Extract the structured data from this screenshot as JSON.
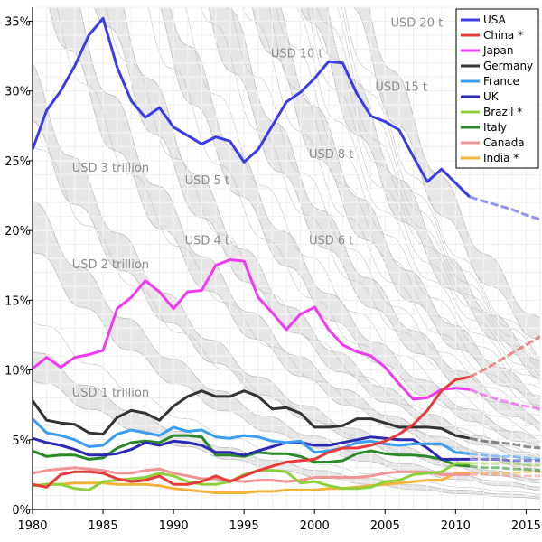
{
  "chart_data": {
    "type": "line",
    "xlim": [
      1980,
      2016
    ],
    "ylim": [
      0,
      36
    ],
    "x_ticks": [
      {
        "value": 1980,
        "label": "1980"
      },
      {
        "value": 1985,
        "label": "1985"
      },
      {
        "value": 1990,
        "label": "1990"
      },
      {
        "value": 1995,
        "label": "1995"
      },
      {
        "value": 2000,
        "label": "2000"
      },
      {
        "value": 2005,
        "label": "2005"
      },
      {
        "value": 2010,
        "label": "2010"
      },
      {
        "value": 2015,
        "label": "2015"
      }
    ],
    "y_ticks": [
      {
        "value": 0,
        "label": "0%"
      },
      {
        "value": 5,
        "label": "5%"
      },
      {
        "value": 10,
        "label": "10%"
      },
      {
        "value": 15,
        "label": "15%"
      },
      {
        "value": 20,
        "label": "20%"
      },
      {
        "value": 25,
        "label": "25%"
      },
      {
        "value": 30,
        "label": "30%"
      },
      {
        "value": 35,
        "label": "35%"
      }
    ],
    "grid": true,
    "legend_position": "top-right",
    "forecast_from": 2011,
    "bands": [
      {
        "label": "USD 1 trillion",
        "x": 1982.8,
        "y": 8.1
      },
      {
        "label": "USD 2 trillion",
        "x": 1982.8,
        "y": 17.3
      },
      {
        "label": "USD 3 trillion",
        "x": 1982.8,
        "y": 24.2
      },
      {
        "label": "USD 4 t",
        "x": 1990.8,
        "y": 19.0
      },
      {
        "label": "USD 5 t",
        "x": 1990.8,
        "y": 23.3
      },
      {
        "label": "USD 6 t",
        "x": 1999.6,
        "y": 19.0
      },
      {
        "label": "USD 8 t",
        "x": 1999.6,
        "y": 25.2
      },
      {
        "label": "USD 10 t",
        "x": 1996.9,
        "y": 32.4
      },
      {
        "label": "USD 15 t",
        "x": 2004.3,
        "y": 30.0
      },
      {
        "label": "USD 20 t",
        "x": 2005.4,
        "y": 34.6
      }
    ],
    "years": [
      1980,
      1981,
      1982,
      1983,
      1984,
      1985,
      1986,
      1987,
      1988,
      1989,
      1990,
      1991,
      1992,
      1993,
      1994,
      1995,
      1996,
      1997,
      1998,
      1999,
      2000,
      2001,
      2002,
      2003,
      2004,
      2005,
      2006,
      2007,
      2008,
      2009,
      2010,
      2011,
      2012,
      2013,
      2014,
      2015,
      2016
    ],
    "series": [
      {
        "name": "USA",
        "color": "#3a3ce8",
        "values": [
          25.8,
          28.6,
          30.0,
          31.8,
          34.0,
          35.2,
          31.7,
          29.3,
          28.1,
          28.8,
          27.4,
          26.8,
          26.2,
          26.7,
          26.4,
          24.9,
          25.8,
          27.5,
          29.2,
          29.9,
          30.9,
          32.1,
          32.0,
          29.8,
          28.2,
          27.8,
          27.2,
          25.3,
          23.5,
          24.4,
          23.4,
          22.4,
          22.1,
          21.8,
          21.5,
          21.1,
          20.8
        ]
      },
      {
        "name": "China *",
        "color": "#e83a3a",
        "values": [
          1.8,
          1.6,
          2.5,
          2.7,
          2.7,
          2.6,
          2.2,
          2.0,
          2.1,
          2.4,
          1.8,
          1.8,
          2.0,
          2.4,
          2.0,
          2.4,
          2.8,
          3.1,
          3.4,
          3.5,
          3.6,
          4.1,
          4.4,
          4.4,
          4.6,
          4.9,
          5.4,
          6.1,
          7.1,
          8.5,
          9.3,
          9.5,
          10.0,
          10.6,
          11.2,
          11.8,
          12.4
        ]
      },
      {
        "name": "Japan",
        "color": "#f03af0",
        "values": [
          10.1,
          10.9,
          10.2,
          10.9,
          11.1,
          11.4,
          14.4,
          15.2,
          16.4,
          15.6,
          14.4,
          15.6,
          15.7,
          17.5,
          17.9,
          17.8,
          15.2,
          14.1,
          12.9,
          14.0,
          14.5,
          12.9,
          11.8,
          11.3,
          11.0,
          10.2,
          9.0,
          7.9,
          8.0,
          8.6,
          8.7,
          8.6,
          8.2,
          7.9,
          7.6,
          7.4,
          7.2
        ]
      },
      {
        "name": "Germany",
        "color": "#333333",
        "values": [
          7.8,
          6.4,
          6.2,
          6.1,
          5.5,
          5.4,
          6.6,
          7.1,
          6.9,
          6.4,
          7.4,
          8.1,
          8.5,
          8.1,
          8.1,
          8.5,
          8.1,
          7.2,
          7.3,
          6.9,
          5.9,
          5.9,
          6.0,
          6.5,
          6.5,
          6.2,
          5.9,
          5.9,
          5.9,
          5.8,
          5.3,
          5.1,
          4.9,
          4.8,
          4.7,
          4.5,
          4.4
        ]
      },
      {
        "name": "France",
        "color": "#3a9ef0",
        "values": [
          6.5,
          5.5,
          5.3,
          5.0,
          4.5,
          4.6,
          5.4,
          5.7,
          5.5,
          5.3,
          5.9,
          5.6,
          5.7,
          5.2,
          5.1,
          5.3,
          5.2,
          4.9,
          4.8,
          4.9,
          4.1,
          4.2,
          4.4,
          4.8,
          4.9,
          4.7,
          4.6,
          4.7,
          4.7,
          4.7,
          4.1,
          4.0,
          3.9,
          3.8,
          3.8,
          3.7,
          3.6
        ]
      },
      {
        "name": "UK",
        "color": "#2a2ab4",
        "values": [
          5.1,
          4.8,
          4.6,
          4.3,
          3.9,
          3.9,
          4.0,
          4.3,
          4.8,
          4.6,
          4.9,
          4.8,
          4.6,
          4.1,
          4.1,
          3.9,
          4.2,
          4.5,
          4.8,
          4.8,
          4.6,
          4.6,
          4.8,
          5.0,
          5.2,
          5.1,
          5.0,
          5.0,
          4.4,
          3.6,
          3.6,
          3.6,
          3.6,
          3.6,
          3.5,
          3.5,
          3.5
        ]
      },
      {
        "name": "Brazil *",
        "color": "#8ed03a",
        "values": [
          1.7,
          1.8,
          1.8,
          1.5,
          1.4,
          2.0,
          2.1,
          2.2,
          2.3,
          2.6,
          2.4,
          2.0,
          1.8,
          1.8,
          2.0,
          2.5,
          2.8,
          2.8,
          2.7,
          1.9,
          2.0,
          1.7,
          1.5,
          1.5,
          1.6,
          2.0,
          2.1,
          2.5,
          2.6,
          2.7,
          3.3,
          3.3,
          3.3,
          3.3,
          3.3,
          3.2,
          3.2
        ]
      },
      {
        "name": "Italy",
        "color": "#2a8a2a",
        "values": [
          4.2,
          3.8,
          3.9,
          3.9,
          3.6,
          3.7,
          4.4,
          4.8,
          4.9,
          4.8,
          5.3,
          5.3,
          5.2,
          3.9,
          3.9,
          3.8,
          4.1,
          4.0,
          4.0,
          3.8,
          3.4,
          3.4,
          3.5,
          4.0,
          4.2,
          4.0,
          3.9,
          3.9,
          3.8,
          3.6,
          3.2,
          3.1,
          3.0,
          3.0,
          2.9,
          2.9,
          2.8
        ]
      },
      {
        "name": "Canada",
        "color": "#f09494",
        "values": [
          2.6,
          2.8,
          2.9,
          3.0,
          2.9,
          2.8,
          2.6,
          2.6,
          2.8,
          2.9,
          2.6,
          2.4,
          2.2,
          2.2,
          2.1,
          2.0,
          2.1,
          2.1,
          2.0,
          2.1,
          2.3,
          2.3,
          2.3,
          2.3,
          2.4,
          2.6,
          2.7,
          2.7,
          2.7,
          2.5,
          2.5,
          2.5,
          2.5,
          2.5,
          2.4,
          2.4,
          2.4
        ]
      },
      {
        "name": "India *",
        "color": "#f0b43a",
        "values": [
          1.7,
          1.8,
          1.8,
          1.9,
          1.9,
          1.9,
          1.8,
          1.8,
          1.8,
          1.7,
          1.5,
          1.4,
          1.3,
          1.2,
          1.2,
          1.2,
          1.3,
          1.3,
          1.4,
          1.4,
          1.4,
          1.5,
          1.5,
          1.6,
          1.7,
          1.8,
          1.9,
          2.0,
          2.1,
          2.1,
          2.6,
          2.6,
          2.6,
          2.6,
          2.6,
          2.7,
          2.7
        ]
      }
    ]
  }
}
